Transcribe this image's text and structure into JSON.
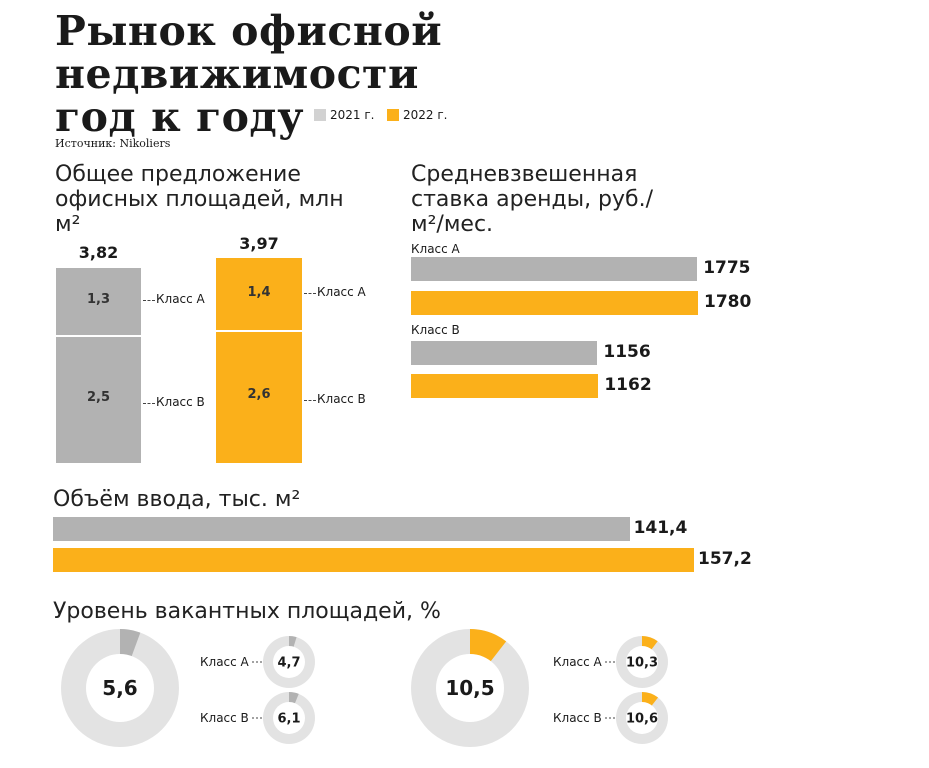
{
  "title_lines": [
    "Рынок офисной",
    "недвижимости",
    "год к году"
  ],
  "legend": [
    {
      "label": "2021 г.",
      "color": "#d2d2d2"
    },
    {
      "label": "2022 г.",
      "color": "#fbb01a"
    }
  ],
  "source": "Источник: Nikoliers",
  "colors": {
    "gray_bar": "#b2b2b2",
    "orange": "#fbb01a",
    "donut_bg": "#e3e3e3",
    "donut_gray": "#b2b2b2"
  },
  "chart_data": [
    {
      "type": "bar",
      "stacked": true,
      "title": "Общее предложение офисных площадей, млн м²",
      "categories": [
        "2021 г.",
        "2022 г."
      ],
      "totals": [
        "3,82",
        "3,97"
      ],
      "series": [
        {
          "name": "Класс А",
          "values": [
            1.3,
            1.4
          ],
          "labels": [
            "1,3",
            "1,4"
          ]
        },
        {
          "name": "Класс В",
          "values": [
            2.5,
            2.6
          ],
          "labels": [
            "2,5",
            "2,6"
          ]
        }
      ]
    },
    {
      "type": "bar",
      "orientation": "horizontal",
      "title": "Средневзвешенная ставка аренды, руб./м²/мес.",
      "groups": [
        {
          "name": "Класс А",
          "values": [
            1775,
            1780
          ],
          "labels": [
            "1775",
            "1780"
          ]
        },
        {
          "name": "Класс В",
          "values": [
            1156,
            1162
          ],
          "labels": [
            "1156",
            "1162"
          ]
        }
      ]
    },
    {
      "type": "bar",
      "orientation": "horizontal",
      "title": "Объём ввода, тыс. м²",
      "categories": [
        "2021 г.",
        "2022 г."
      ],
      "values": [
        141.4,
        157.2
      ],
      "labels": [
        "141,4",
        "157,2"
      ]
    },
    {
      "type": "pie",
      "title": "Уровень вакантных площадей, %",
      "years": [
        {
          "year": "2021 г.",
          "total": 5.6,
          "total_label": "5,6",
          "classes": [
            {
              "name": "Класс А",
              "value": 4.7,
              "label": "4,7"
            },
            {
              "name": "Класс В",
              "value": 6.1,
              "label": "6,1"
            }
          ]
        },
        {
          "year": "2022 г.",
          "total": 10.5,
          "total_label": "10,5",
          "classes": [
            {
              "name": "Класс А",
              "value": 10.3,
              "label": "10,3"
            },
            {
              "name": "Класс В",
              "value": 10.6,
              "label": "10,6"
            }
          ]
        }
      ]
    }
  ]
}
